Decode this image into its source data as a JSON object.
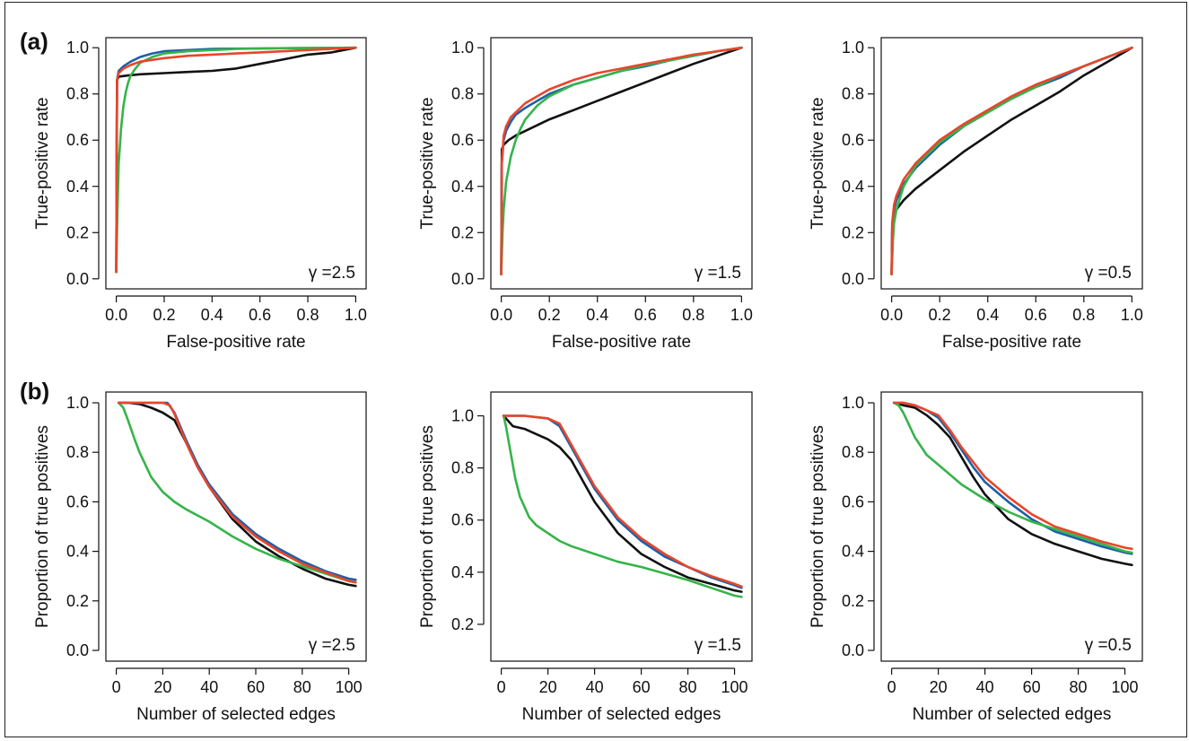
{
  "panels": [
    {
      "label": "(a)"
    },
    {
      "label": "(b)"
    }
  ],
  "colors": {
    "black": "#111111",
    "blue": "#1f5fa6",
    "green": "#35b449",
    "red": "#e8452c"
  },
  "chart_data": [
    {
      "type": "line",
      "panel": "(a)",
      "xlabel": "False-positive rate",
      "ylabel": "True-positive rate",
      "annotation": "γ =2.5",
      "xlim": [
        0,
        1
      ],
      "ylim": [
        0,
        1
      ],
      "xticks": [
        "0.0",
        "0.2",
        "0.4",
        "0.6",
        "0.8",
        "1.0"
      ],
      "yticks": [
        "0.0",
        "0.2",
        "0.4",
        "0.6",
        "0.8",
        "1.0"
      ],
      "series": [
        {
          "color": "#111111",
          "x": [
            0,
            0.003,
            0.01,
            0.05,
            0.1,
            0.2,
            0.3,
            0.4,
            0.5,
            0.6,
            0.7,
            0.8,
            0.9,
            1.0
          ],
          "y": [
            0.03,
            0.86,
            0.875,
            0.88,
            0.885,
            0.89,
            0.895,
            0.9,
            0.91,
            0.93,
            0.95,
            0.97,
            0.98,
            1.0
          ]
        },
        {
          "color": "#1f5fa6",
          "x": [
            0,
            0.003,
            0.01,
            0.03,
            0.06,
            0.1,
            0.15,
            0.2,
            0.3,
            0.4,
            0.6,
            0.8,
            1.0
          ],
          "y": [
            0.03,
            0.86,
            0.9,
            0.92,
            0.94,
            0.96,
            0.975,
            0.985,
            0.99,
            0.995,
            0.997,
            0.999,
            1.0
          ]
        },
        {
          "color": "#35b449",
          "x": [
            0,
            0.005,
            0.01,
            0.02,
            0.03,
            0.04,
            0.05,
            0.06,
            0.08,
            0.1,
            0.15,
            0.2,
            0.3,
            0.5,
            0.7,
            1.0
          ],
          "y": [
            0.03,
            0.3,
            0.5,
            0.65,
            0.75,
            0.81,
            0.85,
            0.88,
            0.91,
            0.935,
            0.96,
            0.975,
            0.985,
            0.995,
            0.998,
            1.0
          ]
        },
        {
          "color": "#e8452c",
          "x": [
            0,
            0.003,
            0.01,
            0.03,
            0.06,
            0.1,
            0.2,
            0.3,
            0.4,
            0.5,
            0.6,
            0.7,
            0.8,
            0.9,
            1.0
          ],
          "y": [
            0.03,
            0.86,
            0.89,
            0.91,
            0.925,
            0.94,
            0.955,
            0.965,
            0.97,
            0.975,
            0.98,
            0.985,
            0.99,
            0.995,
            1.0
          ]
        }
      ]
    },
    {
      "type": "line",
      "panel": "(a)",
      "xlabel": "False-positive rate",
      "ylabel": "True-positive rate",
      "annotation": "γ =1.5",
      "xlim": [
        0,
        1
      ],
      "ylim": [
        0,
        1
      ],
      "xticks": [
        "0.0",
        "0.2",
        "0.4",
        "0.6",
        "0.8",
        "1.0"
      ],
      "yticks": [
        "0.0",
        "0.2",
        "0.4",
        "0.6",
        "0.8",
        "1.0"
      ],
      "series": [
        {
          "color": "#111111",
          "x": [
            0,
            0.002,
            0.01,
            0.03,
            0.06,
            0.1,
            0.2,
            0.3,
            0.4,
            0.5,
            0.6,
            0.7,
            0.8,
            0.9,
            1.0
          ],
          "y": [
            0.02,
            0.56,
            0.58,
            0.6,
            0.62,
            0.64,
            0.69,
            0.73,
            0.77,
            0.81,
            0.85,
            0.89,
            0.93,
            0.965,
            1.0
          ]
        },
        {
          "color": "#1f5fa6",
          "x": [
            0,
            0.002,
            0.01,
            0.02,
            0.04,
            0.06,
            0.1,
            0.15,
            0.2,
            0.3,
            0.4,
            0.5,
            0.6,
            0.7,
            0.8,
            0.9,
            1.0
          ],
          "y": [
            0.02,
            0.5,
            0.6,
            0.64,
            0.68,
            0.71,
            0.74,
            0.77,
            0.8,
            0.84,
            0.87,
            0.9,
            0.92,
            0.945,
            0.965,
            0.985,
            1.0
          ]
        },
        {
          "color": "#35b449",
          "x": [
            0,
            0.005,
            0.01,
            0.02,
            0.04,
            0.06,
            0.08,
            0.1,
            0.15,
            0.2,
            0.3,
            0.4,
            0.5,
            0.6,
            0.7,
            0.8,
            0.9,
            1.0
          ],
          "y": [
            0.02,
            0.2,
            0.3,
            0.42,
            0.53,
            0.6,
            0.65,
            0.69,
            0.75,
            0.79,
            0.84,
            0.87,
            0.9,
            0.925,
            0.945,
            0.965,
            0.985,
            1.0
          ]
        },
        {
          "color": "#e8452c",
          "x": [
            0,
            0.002,
            0.01,
            0.02,
            0.04,
            0.06,
            0.1,
            0.15,
            0.2,
            0.3,
            0.4,
            0.5,
            0.6,
            0.7,
            0.8,
            0.9,
            1.0
          ],
          "y": [
            0.02,
            0.5,
            0.62,
            0.66,
            0.7,
            0.72,
            0.76,
            0.79,
            0.82,
            0.86,
            0.89,
            0.91,
            0.93,
            0.95,
            0.97,
            0.985,
            1.0
          ]
        }
      ]
    },
    {
      "type": "line",
      "panel": "(a)",
      "xlabel": "False-positive rate",
      "ylabel": "True-positive rate",
      "annotation": "γ =0.5",
      "xlim": [
        0,
        1
      ],
      "ylim": [
        0,
        1
      ],
      "xticks": [
        "0.0",
        "0.2",
        "0.4",
        "0.6",
        "0.8",
        "1.0"
      ],
      "yticks": [
        "0.0",
        "0.2",
        "0.4",
        "0.6",
        "0.8",
        "1.0"
      ],
      "series": [
        {
          "color": "#111111",
          "x": [
            0,
            0.002,
            0.01,
            0.02,
            0.05,
            0.1,
            0.2,
            0.3,
            0.4,
            0.5,
            0.6,
            0.7,
            0.8,
            0.9,
            1.0
          ],
          "y": [
            0.02,
            0.2,
            0.27,
            0.3,
            0.34,
            0.39,
            0.47,
            0.55,
            0.62,
            0.69,
            0.75,
            0.81,
            0.88,
            0.94,
            1.0
          ]
        },
        {
          "color": "#1f5fa6",
          "x": [
            0,
            0.002,
            0.01,
            0.02,
            0.05,
            0.1,
            0.2,
            0.3,
            0.4,
            0.5,
            0.6,
            0.7,
            0.8,
            0.9,
            1.0
          ],
          "y": [
            0.02,
            0.22,
            0.3,
            0.34,
            0.41,
            0.48,
            0.58,
            0.66,
            0.72,
            0.78,
            0.83,
            0.87,
            0.92,
            0.96,
            1.0
          ]
        },
        {
          "color": "#35b449",
          "x": [
            0,
            0.005,
            0.01,
            0.02,
            0.05,
            0.1,
            0.2,
            0.3,
            0.4,
            0.5,
            0.6,
            0.7,
            0.8,
            0.9,
            1.0
          ],
          "y": [
            0.02,
            0.16,
            0.24,
            0.3,
            0.4,
            0.49,
            0.59,
            0.66,
            0.72,
            0.78,
            0.83,
            0.88,
            0.92,
            0.96,
            1.0
          ]
        },
        {
          "color": "#e8452c",
          "x": [
            0,
            0.002,
            0.01,
            0.02,
            0.05,
            0.1,
            0.2,
            0.3,
            0.4,
            0.5,
            0.6,
            0.7,
            0.8,
            0.9,
            1.0
          ],
          "y": [
            0.02,
            0.24,
            0.32,
            0.36,
            0.43,
            0.5,
            0.6,
            0.67,
            0.73,
            0.79,
            0.84,
            0.88,
            0.92,
            0.96,
            1.0
          ]
        }
      ]
    },
    {
      "type": "line",
      "panel": "(b)",
      "xlabel": "Number of selected edges",
      "ylabel": "Proportion of true positives",
      "annotation": "γ =2.5",
      "xlim": [
        0,
        103
      ],
      "ylim": [
        0,
        1
      ],
      "xticks": [
        "0",
        "20",
        "40",
        "60",
        "80",
        "100"
      ],
      "yticks": [
        "0.0",
        "0.2",
        "0.4",
        "0.6",
        "0.8",
        "1.0"
      ],
      "series": [
        {
          "color": "#111111",
          "x": [
            1,
            5,
            10,
            15,
            20,
            25,
            30,
            35,
            40,
            50,
            60,
            70,
            80,
            90,
            100,
            103
          ],
          "y": [
            1.0,
            1.0,
            0.995,
            0.98,
            0.96,
            0.93,
            0.84,
            0.74,
            0.66,
            0.53,
            0.44,
            0.38,
            0.33,
            0.29,
            0.265,
            0.26
          ]
        },
        {
          "color": "#1f5fa6",
          "x": [
            1,
            5,
            10,
            15,
            20,
            22,
            25,
            30,
            35,
            40,
            50,
            60,
            70,
            80,
            90,
            100,
            103
          ],
          "y": [
            1.0,
            1.0,
            1.0,
            1.0,
            1.0,
            1.0,
            0.96,
            0.85,
            0.75,
            0.67,
            0.55,
            0.47,
            0.41,
            0.36,
            0.32,
            0.29,
            0.285
          ]
        },
        {
          "color": "#35b449",
          "x": [
            1,
            3,
            5,
            8,
            10,
            15,
            20,
            25,
            30,
            40,
            50,
            60,
            70,
            80,
            90,
            100,
            103
          ],
          "y": [
            1.0,
            0.98,
            0.93,
            0.85,
            0.8,
            0.7,
            0.64,
            0.6,
            0.57,
            0.52,
            0.46,
            0.41,
            0.37,
            0.34,
            0.31,
            0.28,
            0.275
          ]
        },
        {
          "color": "#e8452c",
          "x": [
            1,
            5,
            10,
            15,
            20,
            23,
            25,
            30,
            35,
            40,
            50,
            60,
            70,
            80,
            90,
            100,
            103
          ],
          "y": [
            1.0,
            1.0,
            1.0,
            1.0,
            1.0,
            0.99,
            0.955,
            0.84,
            0.74,
            0.66,
            0.54,
            0.46,
            0.4,
            0.35,
            0.315,
            0.28,
            0.275
          ]
        }
      ]
    },
    {
      "type": "line",
      "panel": "(b)",
      "xlabel": "Number of selected edges",
      "ylabel": "Proportion of true positives",
      "annotation": "γ =1.5",
      "xlim": [
        0,
        103
      ],
      "ylim": [
        0.1,
        1.05
      ],
      "xticks": [
        "0",
        "20",
        "40",
        "60",
        "80",
        "100"
      ],
      "yticks": [
        "0.2",
        "0.4",
        "0.6",
        "0.8",
        "1.0"
      ],
      "series": [
        {
          "color": "#111111",
          "x": [
            1,
            3,
            5,
            10,
            15,
            20,
            25,
            30,
            35,
            40,
            50,
            60,
            70,
            80,
            90,
            100,
            103
          ],
          "y": [
            1.0,
            0.98,
            0.96,
            0.95,
            0.93,
            0.91,
            0.88,
            0.83,
            0.75,
            0.67,
            0.55,
            0.47,
            0.42,
            0.38,
            0.355,
            0.33,
            0.325
          ]
        },
        {
          "color": "#1f5fa6",
          "x": [
            1,
            5,
            10,
            15,
            20,
            25,
            30,
            35,
            40,
            50,
            60,
            70,
            80,
            90,
            100,
            103
          ],
          "y": [
            1.0,
            1.0,
            1.0,
            0.995,
            0.99,
            0.96,
            0.88,
            0.8,
            0.72,
            0.6,
            0.52,
            0.46,
            0.42,
            0.38,
            0.35,
            0.34
          ]
        },
        {
          "color": "#35b449",
          "x": [
            1,
            2,
            4,
            6,
            8,
            10,
            12,
            15,
            20,
            25,
            30,
            40,
            50,
            60,
            70,
            80,
            90,
            100,
            103
          ],
          "y": [
            1.0,
            0.96,
            0.86,
            0.76,
            0.69,
            0.65,
            0.61,
            0.58,
            0.55,
            0.52,
            0.5,
            0.47,
            0.44,
            0.42,
            0.395,
            0.37,
            0.34,
            0.31,
            0.305
          ]
        },
        {
          "color": "#e8452c",
          "x": [
            1,
            5,
            10,
            15,
            20,
            25,
            30,
            35,
            40,
            50,
            60,
            70,
            80,
            90,
            100,
            103
          ],
          "y": [
            1.0,
            1.0,
            1.0,
            0.995,
            0.99,
            0.97,
            0.89,
            0.81,
            0.73,
            0.61,
            0.53,
            0.47,
            0.42,
            0.385,
            0.355,
            0.345
          ]
        }
      ]
    },
    {
      "type": "line",
      "panel": "(b)",
      "xlabel": "Number of selected edges",
      "ylabel": "Proportion of true positives",
      "annotation": "γ =0.5",
      "xlim": [
        0,
        103
      ],
      "ylim": [
        0,
        1
      ],
      "xticks": [
        "0",
        "20",
        "40",
        "60",
        "80",
        "100"
      ],
      "yticks": [
        "0.0",
        "0.2",
        "0.4",
        "0.6",
        "0.8",
        "1.0"
      ],
      "series": [
        {
          "color": "#111111",
          "x": [
            1,
            5,
            10,
            15,
            20,
            25,
            30,
            35,
            40,
            50,
            60,
            70,
            80,
            90,
            100,
            103
          ],
          "y": [
            1.0,
            0.99,
            0.98,
            0.95,
            0.91,
            0.86,
            0.78,
            0.7,
            0.63,
            0.53,
            0.47,
            0.43,
            0.4,
            0.37,
            0.35,
            0.345
          ]
        },
        {
          "color": "#1f5fa6",
          "x": [
            1,
            5,
            10,
            15,
            20,
            25,
            30,
            35,
            40,
            50,
            60,
            70,
            80,
            90,
            100,
            103
          ],
          "y": [
            1.0,
            1.0,
            0.99,
            0.97,
            0.94,
            0.88,
            0.81,
            0.74,
            0.68,
            0.6,
            0.53,
            0.48,
            0.45,
            0.42,
            0.395,
            0.39
          ]
        },
        {
          "color": "#35b449",
          "x": [
            1,
            3,
            5,
            8,
            10,
            15,
            20,
            25,
            30,
            40,
            50,
            60,
            70,
            80,
            90,
            100,
            103
          ],
          "y": [
            1.0,
            0.99,
            0.96,
            0.9,
            0.86,
            0.79,
            0.75,
            0.71,
            0.67,
            0.61,
            0.56,
            0.52,
            0.49,
            0.46,
            0.43,
            0.4,
            0.395
          ]
        },
        {
          "color": "#e8452c",
          "x": [
            1,
            5,
            10,
            15,
            20,
            25,
            30,
            35,
            40,
            50,
            60,
            70,
            80,
            90,
            100,
            103
          ],
          "y": [
            1.0,
            1.0,
            0.99,
            0.97,
            0.95,
            0.89,
            0.82,
            0.76,
            0.7,
            0.62,
            0.55,
            0.5,
            0.47,
            0.44,
            0.415,
            0.41
          ]
        }
      ]
    }
  ]
}
